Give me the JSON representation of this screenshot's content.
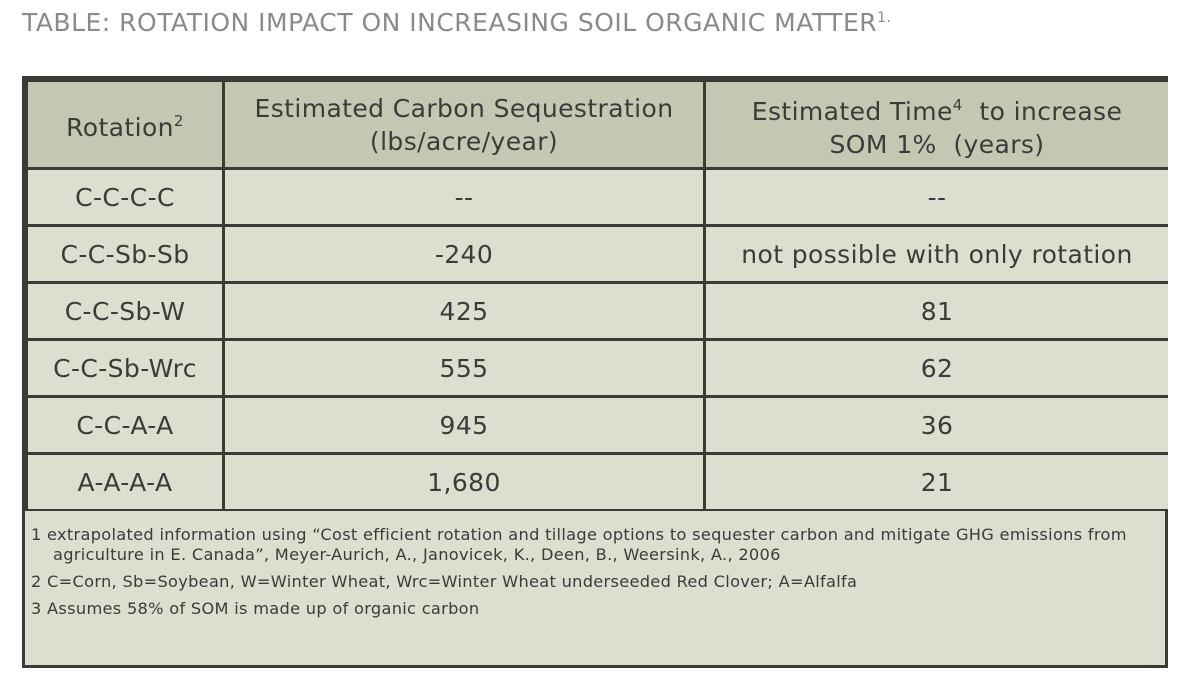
{
  "title": {
    "text": "TABLE: ROTATION IMPACT ON INCREASING SOIL ORGANIC MATTER",
    "sup": "1."
  },
  "table": {
    "headers": [
      {
        "line1": "Rotation",
        "sup": "2",
        "line2": ""
      },
      {
        "line1": "Estimated Carbon Sequestration",
        "sup": "",
        "line2": "(lbs/acre/year)"
      },
      {
        "line1": "Estimated Time",
        "sup": "4",
        "line1b": "  to increase",
        "line2": "SOM 1%  (years)"
      }
    ],
    "rows": [
      {
        "rotation": "C-C-C-C",
        "carbon": "--",
        "time": "--"
      },
      {
        "rotation": "C-C-Sb-Sb",
        "carbon": "-240",
        "time": "not possible with only rotation"
      },
      {
        "rotation": "C-C-Sb-W",
        "carbon": "425",
        "time": "81"
      },
      {
        "rotation": "C-C-Sb-Wrc",
        "carbon": "555",
        "time": "62"
      },
      {
        "rotation": "C-C-A-A",
        "carbon": "945",
        "time": "36"
      },
      {
        "rotation": "A-A-A-A",
        "carbon": "1,680",
        "time": "21"
      }
    ]
  },
  "notes": [
    "1 extrapolated information using “Cost efficient rotation and tillage options to sequester carbon and mitigate GHG emissions from agriculture in E. Canada”,  Meyer-Aurich, A., Janovicek, K., Deen, B., Weersink, A., 2006",
    "2 C=Corn, Sb=Soybean, W=Winter Wheat, Wrc=Winter Wheat underseeded Red Clover; A=Alfalfa",
    "3 Assumes 58% of SOM is made up of organic carbon"
  ]
}
